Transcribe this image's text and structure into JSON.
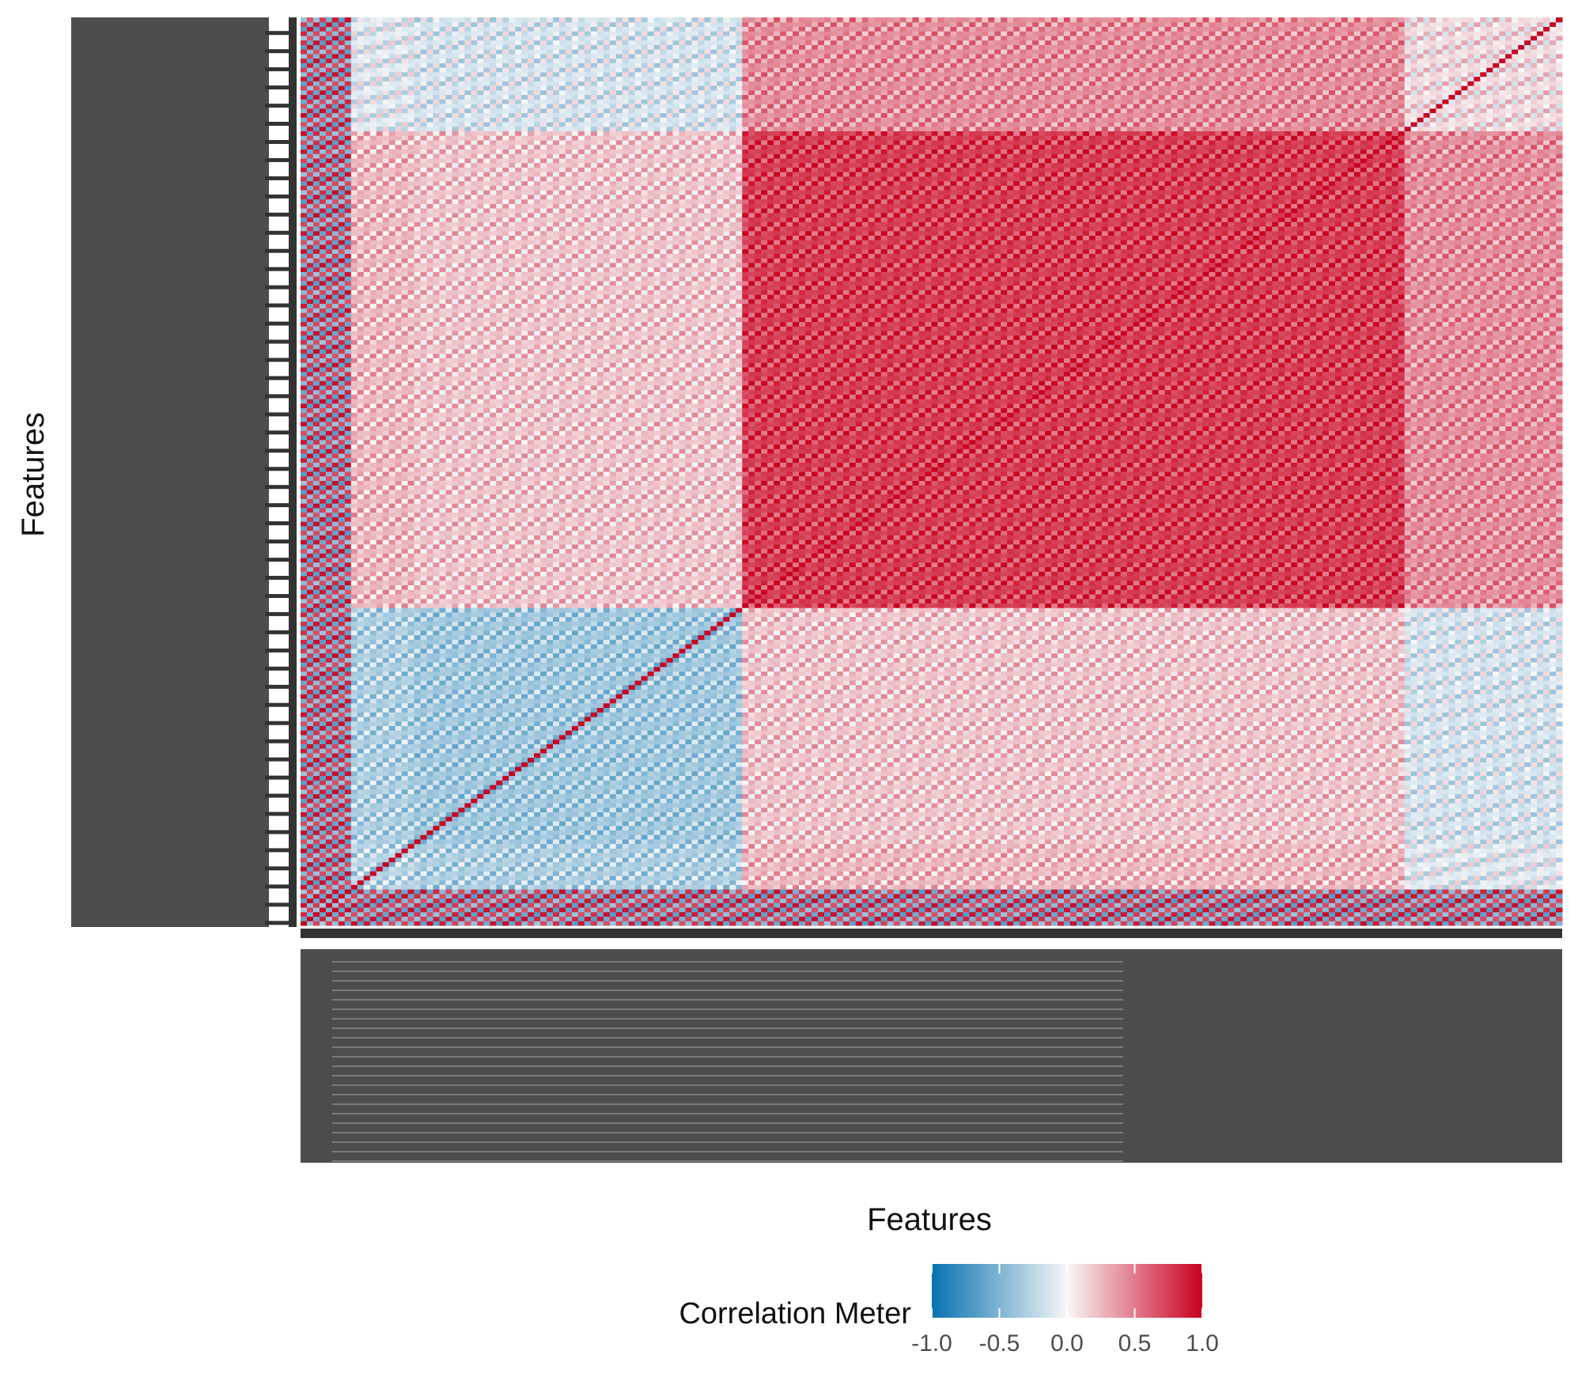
{
  "chart_data": {
    "type": "heatmap",
    "title": "",
    "xlabel": "Features",
    "ylabel": "Features",
    "n_features": 200,
    "tick_labels_legible": false,
    "colorscale": {
      "low": "#0571b0",
      "mid": "#f7f7f7",
      "high": "#ca0020",
      "min": -1.0,
      "max": 1.0
    },
    "legend": {
      "title": "Correlation Meter",
      "position": "bottom",
      "ticks": [
        "-1.0",
        "-0.5",
        "0.0",
        "0.5",
        "1.0"
      ],
      "tick_values": [
        -1.0,
        -0.5,
        0.0,
        0.5,
        1.0
      ]
    },
    "blocks": [
      {
        "from": 0,
        "to": 8,
        "pattern": "checker",
        "base": 0.55
      },
      {
        "from": 8,
        "to": 18,
        "pattern": "weak-negative",
        "base": -0.25
      },
      {
        "from": 18,
        "to": 70,
        "pattern": "moderate-negative",
        "base": -0.35
      },
      {
        "from": 70,
        "to": 175,
        "pattern": "strong-positive",
        "base": 0.75
      },
      {
        "from": 175,
        "to": 200,
        "pattern": "mixed",
        "base": 0.1
      }
    ],
    "grid": false
  }
}
